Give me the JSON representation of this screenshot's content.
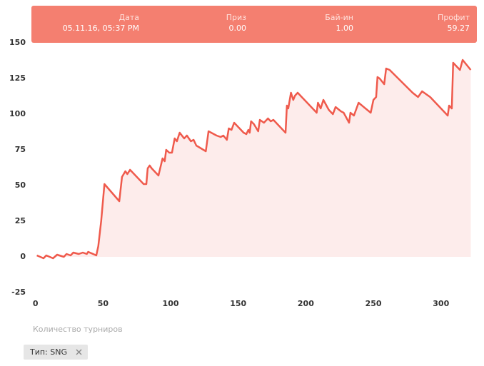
{
  "chart_data": {
    "type": "area",
    "x_label": "Количество турниров",
    "tooltip": [
      {
        "label": "Дата",
        "value": "05.11.16, 05:37 PM"
      },
      {
        "label": "Приз",
        "value": "0.00"
      },
      {
        "label": "Бай-ин",
        "value": "1.00"
      },
      {
        "label": "Профит",
        "value": "59.27"
      }
    ],
    "x": [
      1,
      6,
      8,
      13,
      16,
      21,
      23,
      26,
      28,
      32,
      35,
      38,
      39,
      45,
      46.5,
      48.6,
      51,
      62,
      64,
      66.5,
      68,
      70,
      80,
      82,
      83,
      84.5,
      86,
      91,
      94,
      95.6,
      96.7,
      99,
      101,
      103,
      104.6,
      106.7,
      110,
      112,
      115,
      117,
      119,
      126,
      128,
      130,
      134,
      137,
      139,
      141.6,
      143,
      145,
      147,
      151,
      154,
      156,
      157.5,
      158.5,
      159.5,
      161.6,
      164.8,
      166,
      169,
      172,
      174,
      176,
      180,
      185,
      186,
      187,
      189,
      190.7,
      192,
      194,
      208,
      209,
      211,
      213,
      217,
      220,
      222,
      226,
      228,
      232,
      233,
      235.6,
      239,
      248,
      250,
      252,
      253,
      254.6,
      258,
      259.4,
      262,
      279,
      283,
      286,
      292,
      305,
      306,
      308,
      309,
      314,
      316,
      322
    ],
    "series": [
      {
        "color": "#ef5a4c",
        "fill": "#fdeceb",
        "values": [
          1,
          -1,
          1,
          -1,
          1.5,
          0,
          2,
          1,
          3,
          2,
          3,
          2,
          3.5,
          1,
          7.5,
          25,
          51,
          39,
          56,
          60,
          58,
          61,
          51,
          51,
          62,
          64,
          62,
          57,
          69,
          67,
          75,
          73,
          73,
          83,
          81,
          87,
          83,
          85,
          81,
          82,
          78,
          74,
          88,
          87,
          85,
          84,
          85,
          82,
          90,
          89,
          94,
          90,
          87,
          86,
          89,
          87,
          95,
          93,
          88,
          96,
          94,
          97,
          95,
          96,
          92,
          87,
          106,
          104,
          115,
          110,
          113,
          115,
          101,
          108,
          104,
          110,
          103,
          100,
          105,
          102,
          101,
          94,
          101,
          99,
          108,
          101,
          110,
          112,
          126,
          125,
          121,
          132,
          131,
          115,
          112,
          116,
          112,
          99,
          106,
          104,
          136,
          131,
          138,
          131
        ]
      }
    ],
    "xlim": [
      -3,
      326
    ],
    "xticks": [
      0,
      50,
      100,
      150,
      200,
      250,
      300
    ],
    "ylim": [
      -25,
      150
    ],
    "yticks": [
      -25,
      0,
      25,
      50,
      75,
      100,
      125,
      150
    ],
    "filter": "Тип: SNG"
  }
}
